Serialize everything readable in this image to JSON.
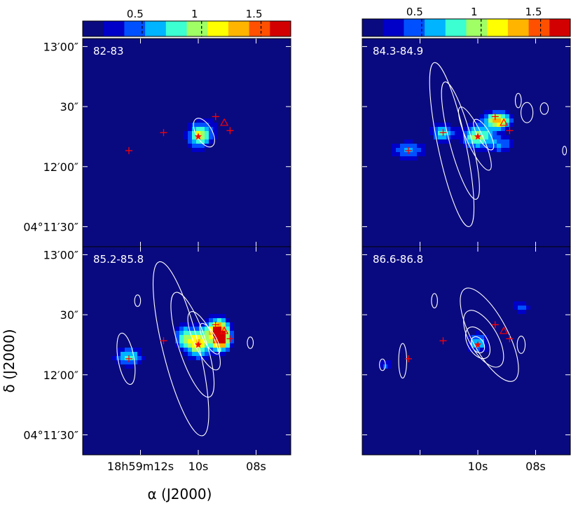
{
  "chart_data": {
    "type": "heatmap",
    "colormap": [
      "#0a0a80",
      "#0000c8",
      "#0050ff",
      "#00b4ff",
      "#3cffd2",
      "#a0ff64",
      "#ffff00",
      "#ffb400",
      "#ff5000",
      "#d20000"
    ],
    "colorbar": {
      "range": [
        0,
        1.75
      ],
      "ticks": [
        {
          "value": 0.5,
          "label": "0.5"
        },
        {
          "value": 1.0,
          "label": "1"
        },
        {
          "value": 1.5,
          "label": "1.5"
        }
      ]
    },
    "x_axis": {
      "title": "α (J2000)",
      "ticks": [
        {
          "value": 12.0,
          "label": "18h59m12s"
        },
        {
          "value": 10.0,
          "label": "10s"
        },
        {
          "value": 8.0,
          "label": "08s"
        }
      ],
      "range": [
        14.0,
        6.8
      ]
    },
    "y_axis": {
      "title": "δ (J2000)",
      "ticks": [
        {
          "value": 60,
          "label": "13′00″"
        },
        {
          "value": 30,
          "label": "30″"
        },
        {
          "value": 0,
          "label": "12′00″"
        },
        {
          "value": -30,
          "label": "04°11′30″"
        }
      ],
      "range": [
        -40,
        64
      ]
    },
    "markers": {
      "star": {
        "x": 10.0,
        "y": 15,
        "color": "#ff0000"
      },
      "crosses": [
        {
          "x": 12.4,
          "y": 8
        },
        {
          "x": 11.2,
          "y": 17
        },
        {
          "x": 9.4,
          "y": 25
        },
        {
          "x": 8.9,
          "y": 18
        }
      ],
      "triangle": {
        "x": 9.1,
        "y": 22
      }
    },
    "panels": [
      {
        "label": "82-83",
        "emission": [
          {
            "x": 10.0,
            "y": 15,
            "sx": 0.25,
            "sy": 4,
            "peak": 0.9
          },
          {
            "x": 9.7,
            "y": 18,
            "sx": 0.3,
            "sy": 4,
            "peak": 0.4
          }
        ],
        "contours": [
          {
            "x": 9.8,
            "y": 17,
            "rx": 0.55,
            "ry": 4,
            "rot": -30
          }
        ]
      },
      {
        "label": "84.3-84.9",
        "emission": [
          {
            "x": 10.0,
            "y": 15,
            "sx": 0.35,
            "sy": 4,
            "peak": 1.0
          },
          {
            "x": 9.3,
            "y": 23,
            "sx": 0.3,
            "sy": 3,
            "peak": 1.3
          },
          {
            "x": 11.2,
            "y": 17,
            "sx": 0.25,
            "sy": 3,
            "peak": 0.8
          },
          {
            "x": 12.4,
            "y": 8,
            "sx": 0.4,
            "sy": 3,
            "peak": 0.6
          },
          {
            "x": 9.2,
            "y": 11,
            "sx": 0.3,
            "sy": 3,
            "peak": 0.5
          }
        ],
        "contours": [
          {
            "x": 10.9,
            "y": 11,
            "rx": 2.9,
            "ry": 7,
            "rot": -12
          },
          {
            "x": 10.6,
            "y": 13,
            "rx": 2.1,
            "ry": 5.5,
            "rot": -15
          },
          {
            "x": 10.1,
            "y": 14,
            "rx": 1.2,
            "ry": 4,
            "rot": -25
          },
          {
            "x": 9.8,
            "y": 16,
            "rx": 0.6,
            "ry": 3,
            "rot": -30
          },
          {
            "x": 8.3,
            "y": 27,
            "rx": 0.35,
            "ry": 3,
            "rot": 0
          },
          {
            "x": 7.7,
            "y": 29,
            "rx": 0.2,
            "ry": 2,
            "rot": 0
          },
          {
            "x": 8.6,
            "y": 33,
            "rx": 0.25,
            "ry": 1.5,
            "rot": 0
          },
          {
            "x": 7.0,
            "y": 8,
            "rx": 0.15,
            "ry": 1,
            "rot": 0
          }
        ]
      },
      {
        "label": "85.2-85.8",
        "emission": [
          {
            "x": 10.0,
            "y": 16,
            "sx": 0.3,
            "sy": 5,
            "peak": 1.2
          },
          {
            "x": 9.3,
            "y": 22,
            "sx": 0.25,
            "sy": 4,
            "peak": 1.7
          },
          {
            "x": 9.2,
            "y": 16,
            "sx": 0.2,
            "sy": 3,
            "peak": 1.2
          },
          {
            "x": 12.4,
            "y": 9,
            "sx": 0.3,
            "sy": 3,
            "peak": 0.8
          },
          {
            "x": 10.5,
            "y": 19,
            "sx": 0.2,
            "sy": 4,
            "peak": 0.7
          }
        ],
        "contours": [
          {
            "x": 10.6,
            "y": 13,
            "rx": 3.1,
            "ry": 9,
            "rot": -14
          },
          {
            "x": 10.2,
            "y": 15,
            "rx": 1.9,
            "ry": 7,
            "rot": -18
          },
          {
            "x": 9.8,
            "y": 17,
            "rx": 1.1,
            "ry": 5,
            "rot": -25
          },
          {
            "x": 9.6,
            "y": 18,
            "rx": 0.6,
            "ry": 3,
            "rot": -30
          },
          {
            "x": 12.5,
            "y": 8,
            "rx": 0.9,
            "ry": 4,
            "rot": -10
          },
          {
            "x": 12.1,
            "y": 37,
            "rx": 0.2,
            "ry": 1.5,
            "rot": 0
          },
          {
            "x": 8.2,
            "y": 16,
            "rx": 0.2,
            "ry": 1.5,
            "rot": 0
          }
        ]
      },
      {
        "label": "86.6-86.8",
        "emission": [
          {
            "x": 10.0,
            "y": 16,
            "sx": 0.25,
            "sy": 3,
            "peak": 0.7
          },
          {
            "x": 8.5,
            "y": 34,
            "sx": 0.2,
            "sy": 2,
            "peak": 0.5
          },
          {
            "x": 13.2,
            "y": 5,
            "sx": 0.2,
            "sy": 2,
            "peak": 0.4
          }
        ],
        "contours": [
          {
            "x": 9.6,
            "y": 20,
            "rx": 1.8,
            "ry": 9,
            "rot": -28
          },
          {
            "x": 9.8,
            "y": 18,
            "rx": 1.1,
            "ry": 7,
            "rot": -30
          },
          {
            "x": 10.0,
            "y": 16,
            "rx": 0.6,
            "ry": 5,
            "rot": -30
          },
          {
            "x": 10.0,
            "y": 15,
            "rx": 0.3,
            "ry": 3,
            "rot": -30
          },
          {
            "x": 12.6,
            "y": 7,
            "rx": 0.6,
            "ry": 2,
            "rot": 0
          },
          {
            "x": 11.5,
            "y": 37,
            "rx": 0.25,
            "ry": 1.5,
            "rot": 0
          },
          {
            "x": 8.5,
            "y": 15,
            "rx": 0.3,
            "ry": 2,
            "rot": 0
          },
          {
            "x": 13.3,
            "y": 5,
            "rx": 0.2,
            "ry": 1.5,
            "rot": 0
          }
        ]
      }
    ]
  }
}
